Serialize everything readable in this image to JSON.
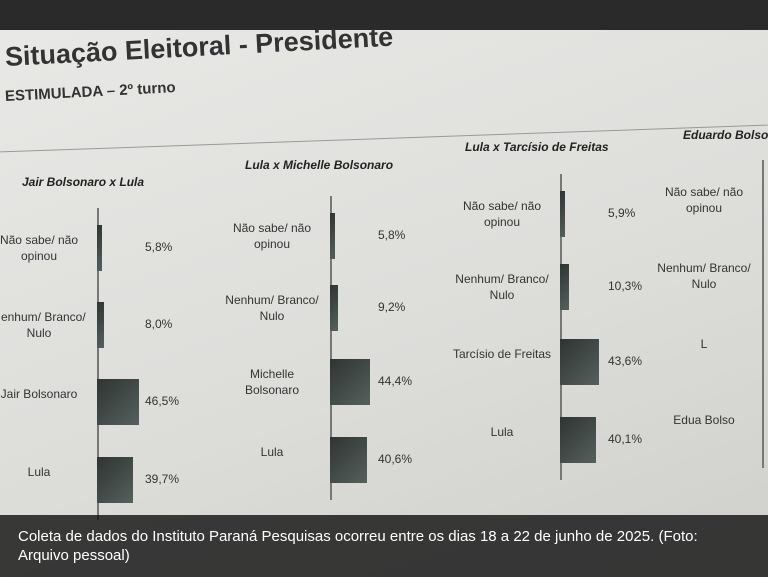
{
  "slide": {
    "title": "Situação Eleitoral - Presidente",
    "subtitle": "ESTIMULADA – 2º turno"
  },
  "chart_data": [
    {
      "type": "bar",
      "title": "Jair Bolsonaro x Lula",
      "color": "#2e3432",
      "categories": [
        "Não sabe/ não opinou",
        "Nenhum/ Branco/ Nulo",
        "Jair Bolsonaro",
        "Lula"
      ],
      "values": [
        5.8,
        8.0,
        46.5,
        39.7
      ],
      "value_labels": [
        "5,8%",
        "8,0%",
        "46,5%",
        "39,7%"
      ]
    },
    {
      "type": "bar",
      "title": "Lula x Michelle Bolsonaro",
      "color": "#2e3432",
      "categories": [
        "Não sabe/ não opinou",
        "Nenhum/ Branco/ Nulo",
        "Michelle Bolsonaro",
        "Lula"
      ],
      "values": [
        5.8,
        9.2,
        44.4,
        40.6
      ],
      "value_labels": [
        "5,8%",
        "9,2%",
        "44,4%",
        "40,6%"
      ]
    },
    {
      "type": "bar",
      "title": "Lula x Tarcísio de Freitas",
      "color": "#2e3432",
      "categories": [
        "Não sabe/ não opinou",
        "Nenhum/ Branco/ Nulo",
        "Tarcísio de Freitas",
        "Lula"
      ],
      "values": [
        5.9,
        10.3,
        43.6,
        40.1
      ],
      "value_labels": [
        "5,9%",
        "10,3%",
        "43,6%",
        "40,1%"
      ]
    },
    {
      "type": "bar",
      "title": "Eduardo Bolso",
      "color": "#2e3432",
      "categories": [
        "Não sabe/ não opinou",
        "Nenhum/ Branco/ Nulo",
        "L",
        "Edua Bolso"
      ],
      "values": [
        null,
        null,
        null,
        null
      ]
    }
  ],
  "caption": "Coleta de dados do Instituto Paraná Pesquisas ocorreu entre os dias 18 a 22 de junho de 2025. (Foto: Arquivo pessoal)"
}
